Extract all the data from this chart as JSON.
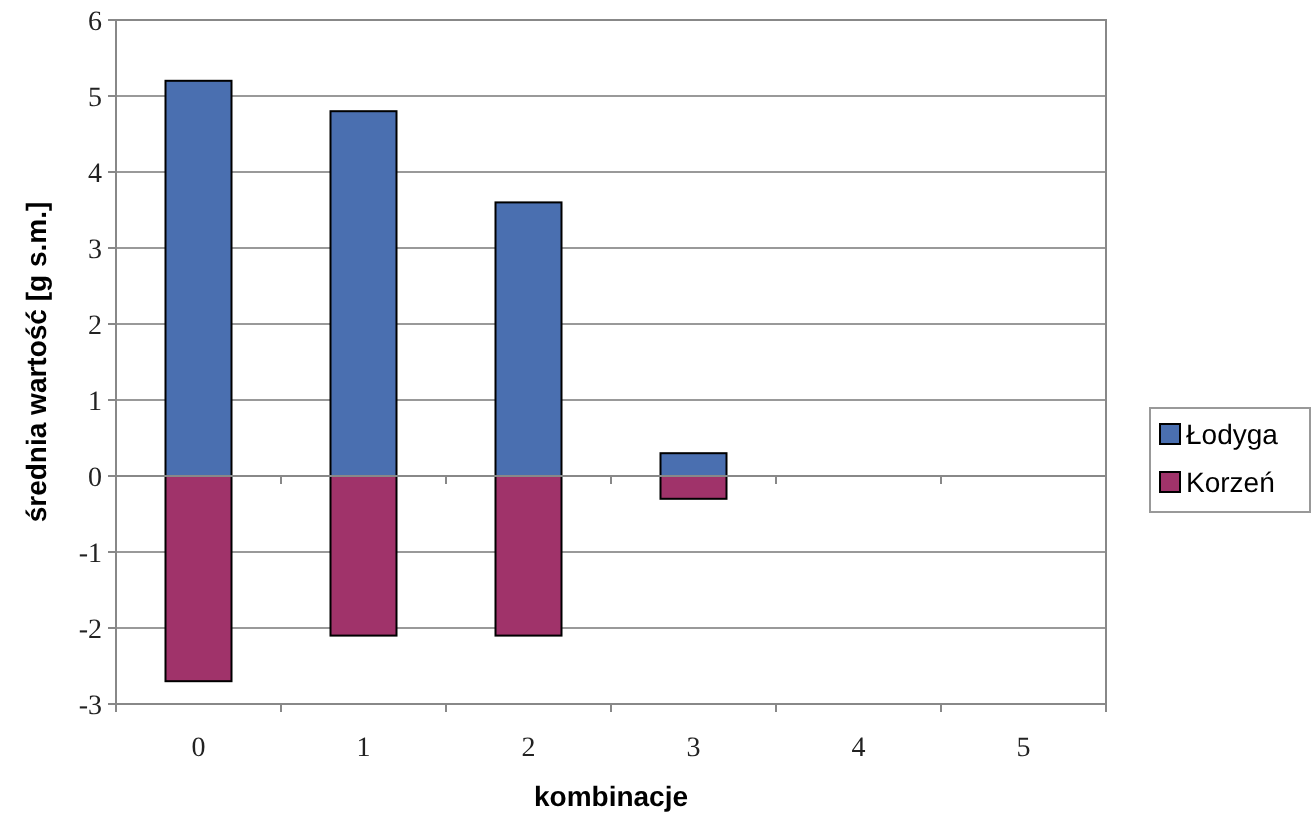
{
  "chart_data": {
    "type": "bar",
    "stacked": true,
    "xlabel": "kombinacje",
    "ylabel": "średnia wartość [g s.m.]",
    "categories": [
      "0",
      "1",
      "2",
      "3",
      "4",
      "5"
    ],
    "series": [
      {
        "name": "Łodyga",
        "color": "#4a6fb0",
        "values": [
          5.2,
          4.8,
          3.6,
          0.3,
          0,
          0
        ]
      },
      {
        "name": "Korzeń",
        "color": "#a0336a",
        "values": [
          -2.7,
          -2.1,
          -2.1,
          -0.3,
          0,
          0
        ]
      }
    ],
    "ylim": [
      -3,
      6
    ],
    "yticks": [
      -3,
      -2,
      -1,
      0,
      1,
      2,
      3,
      4,
      5,
      6
    ],
    "grid": "y",
    "legend": "right"
  }
}
